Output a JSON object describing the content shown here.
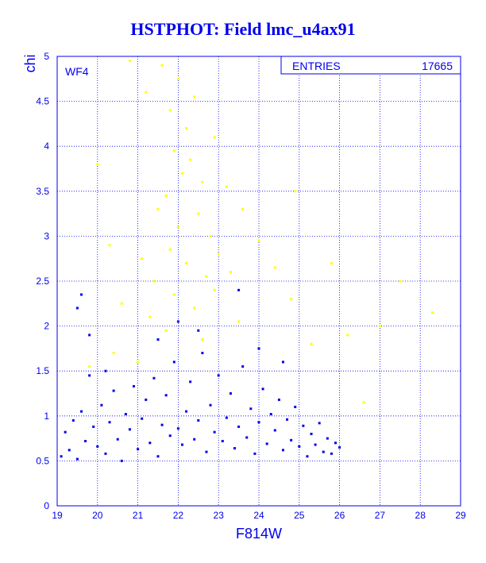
{
  "title": "HSTPHOT: Field lmc_u4ax91",
  "panel_label": "WF4",
  "stats_box": {
    "label": "ENTRIES",
    "value": "17665"
  },
  "colors": {
    "axis": "#0000ee",
    "grid": "#0000ee",
    "good_stars": "#0000ee",
    "rejected_stars": "#ffff00",
    "background": "#ffffff"
  },
  "chart_data": {
    "type": "scatter",
    "title": "HSTPHOT: Field lmc_u4ax91",
    "xlabel": "F814W",
    "ylabel": "chi",
    "xlim": [
      19,
      29
    ],
    "ylim": [
      0,
      5
    ],
    "grid": true,
    "x_ticks": [
      "19",
      "20",
      "21",
      "22",
      "23",
      "24",
      "25",
      "26",
      "27",
      "28",
      "29"
    ],
    "y_ticks": [
      "0",
      "0.5",
      "1",
      "1.5",
      "2",
      "2.5",
      "3",
      "3.5",
      "4",
      "4.5",
      "5"
    ],
    "entries": 17665,
    "series": [
      {
        "color": "#0000ee",
        "points": [
          [
            19.1,
            0.55
          ],
          [
            19.2,
            0.82
          ],
          [
            19.3,
            0.62
          ],
          [
            19.4,
            0.95
          ],
          [
            19.5,
            0.52
          ],
          [
            19.6,
            1.05
          ],
          [
            19.7,
            0.72
          ],
          [
            19.8,
            1.45
          ],
          [
            19.9,
            0.88
          ],
          [
            20.0,
            0.66
          ],
          [
            20.1,
            1.12
          ],
          [
            20.2,
            0.58
          ],
          [
            20.3,
            0.93
          ],
          [
            20.4,
            1.28
          ],
          [
            20.5,
            0.74
          ],
          [
            20.6,
            0.5
          ],
          [
            20.7,
            1.02
          ],
          [
            20.8,
            0.85
          ],
          [
            20.9,
            1.33
          ],
          [
            21.0,
            0.63
          ],
          [
            21.1,
            0.97
          ],
          [
            21.2,
            1.18
          ],
          [
            21.3,
            0.7
          ],
          [
            21.4,
            1.42
          ],
          [
            21.5,
            0.55
          ],
          [
            21.6,
            0.9
          ],
          [
            21.7,
            1.23
          ],
          [
            21.8,
            0.78
          ],
          [
            21.9,
            1.6
          ],
          [
            22.0,
            0.86
          ],
          [
            22.1,
            0.68
          ],
          [
            22.2,
            1.05
          ],
          [
            22.3,
            1.38
          ],
          [
            22.4,
            0.74
          ],
          [
            22.5,
            0.95
          ],
          [
            22.6,
            1.7
          ],
          [
            22.7,
            0.6
          ],
          [
            22.8,
            1.12
          ],
          [
            22.9,
            0.82
          ],
          [
            23.0,
            1.45
          ],
          [
            23.1,
            0.72
          ],
          [
            23.2,
            0.98
          ],
          [
            23.3,
            1.25
          ],
          [
            23.4,
            0.64
          ],
          [
            23.5,
            0.88
          ],
          [
            23.6,
            1.55
          ],
          [
            23.7,
            0.76
          ],
          [
            23.8,
            1.08
          ],
          [
            23.9,
            0.58
          ],
          [
            24.0,
            0.93
          ],
          [
            24.1,
            1.3
          ],
          [
            24.2,
            0.69
          ],
          [
            24.3,
            1.02
          ],
          [
            24.4,
            0.84
          ],
          [
            24.5,
            1.18
          ],
          [
            24.6,
            0.62
          ],
          [
            24.7,
            0.96
          ],
          [
            24.8,
            0.73
          ],
          [
            24.9,
            1.1
          ],
          [
            25.0,
            0.66
          ],
          [
            25.1,
            0.89
          ],
          [
            25.2,
            0.55
          ],
          [
            25.3,
            0.8
          ],
          [
            25.4,
            0.68
          ],
          [
            25.5,
            0.92
          ],
          [
            25.6,
            0.6
          ],
          [
            25.7,
            0.75
          ],
          [
            25.8,
            0.58
          ],
          [
            25.9,
            0.7
          ],
          [
            26.0,
            0.65
          ],
          [
            19.5,
            2.2
          ],
          [
            19.6,
            2.35
          ],
          [
            19.8,
            1.9
          ],
          [
            20.2,
            1.5
          ],
          [
            21.5,
            1.85
          ],
          [
            22.0,
            2.05
          ],
          [
            22.5,
            1.95
          ],
          [
            23.5,
            2.4
          ],
          [
            24.0,
            1.75
          ],
          [
            24.6,
            1.6
          ]
        ]
      },
      {
        "color": "#ffff00",
        "points": [
          [
            20.8,
            4.95
          ],
          [
            21.2,
            4.6
          ],
          [
            21.6,
            4.9
          ],
          [
            21.8,
            4.4
          ],
          [
            22.0,
            4.75
          ],
          [
            22.2,
            4.2
          ],
          [
            22.4,
            4.55
          ],
          [
            21.9,
            3.95
          ],
          [
            22.1,
            3.7
          ],
          [
            21.7,
            3.45
          ],
          [
            22.3,
            3.85
          ],
          [
            22.6,
            3.6
          ],
          [
            21.5,
            3.3
          ],
          [
            22.0,
            3.1
          ],
          [
            22.5,
            3.25
          ],
          [
            22.8,
            3.0
          ],
          [
            21.8,
            2.85
          ],
          [
            22.2,
            2.7
          ],
          [
            22.7,
            2.55
          ],
          [
            23.0,
            2.8
          ],
          [
            21.4,
            2.5
          ],
          [
            21.9,
            2.35
          ],
          [
            22.4,
            2.2
          ],
          [
            22.9,
            2.4
          ],
          [
            23.3,
            2.6
          ],
          [
            21.3,
            2.1
          ],
          [
            21.7,
            1.95
          ],
          [
            22.6,
            1.85
          ],
          [
            23.5,
            2.05
          ],
          [
            20.4,
            1.7
          ],
          [
            20.0,
            3.8
          ],
          [
            20.3,
            2.9
          ],
          [
            19.8,
            1.55
          ],
          [
            24.4,
            2.65
          ],
          [
            24.8,
            2.3
          ],
          [
            25.3,
            1.8
          ],
          [
            26.2,
            1.9
          ],
          [
            27.5,
            2.5
          ],
          [
            28.3,
            2.15
          ],
          [
            26.6,
            1.15
          ],
          [
            23.6,
            3.3
          ],
          [
            24.0,
            2.95
          ],
          [
            24.9,
            3.5
          ],
          [
            25.8,
            2.7
          ],
          [
            27.0,
            2.0
          ],
          [
            22.9,
            4.1
          ],
          [
            23.2,
            3.55
          ],
          [
            21.1,
            2.75
          ],
          [
            20.6,
            2.25
          ],
          [
            21.0,
            1.6
          ]
        ]
      }
    ]
  }
}
